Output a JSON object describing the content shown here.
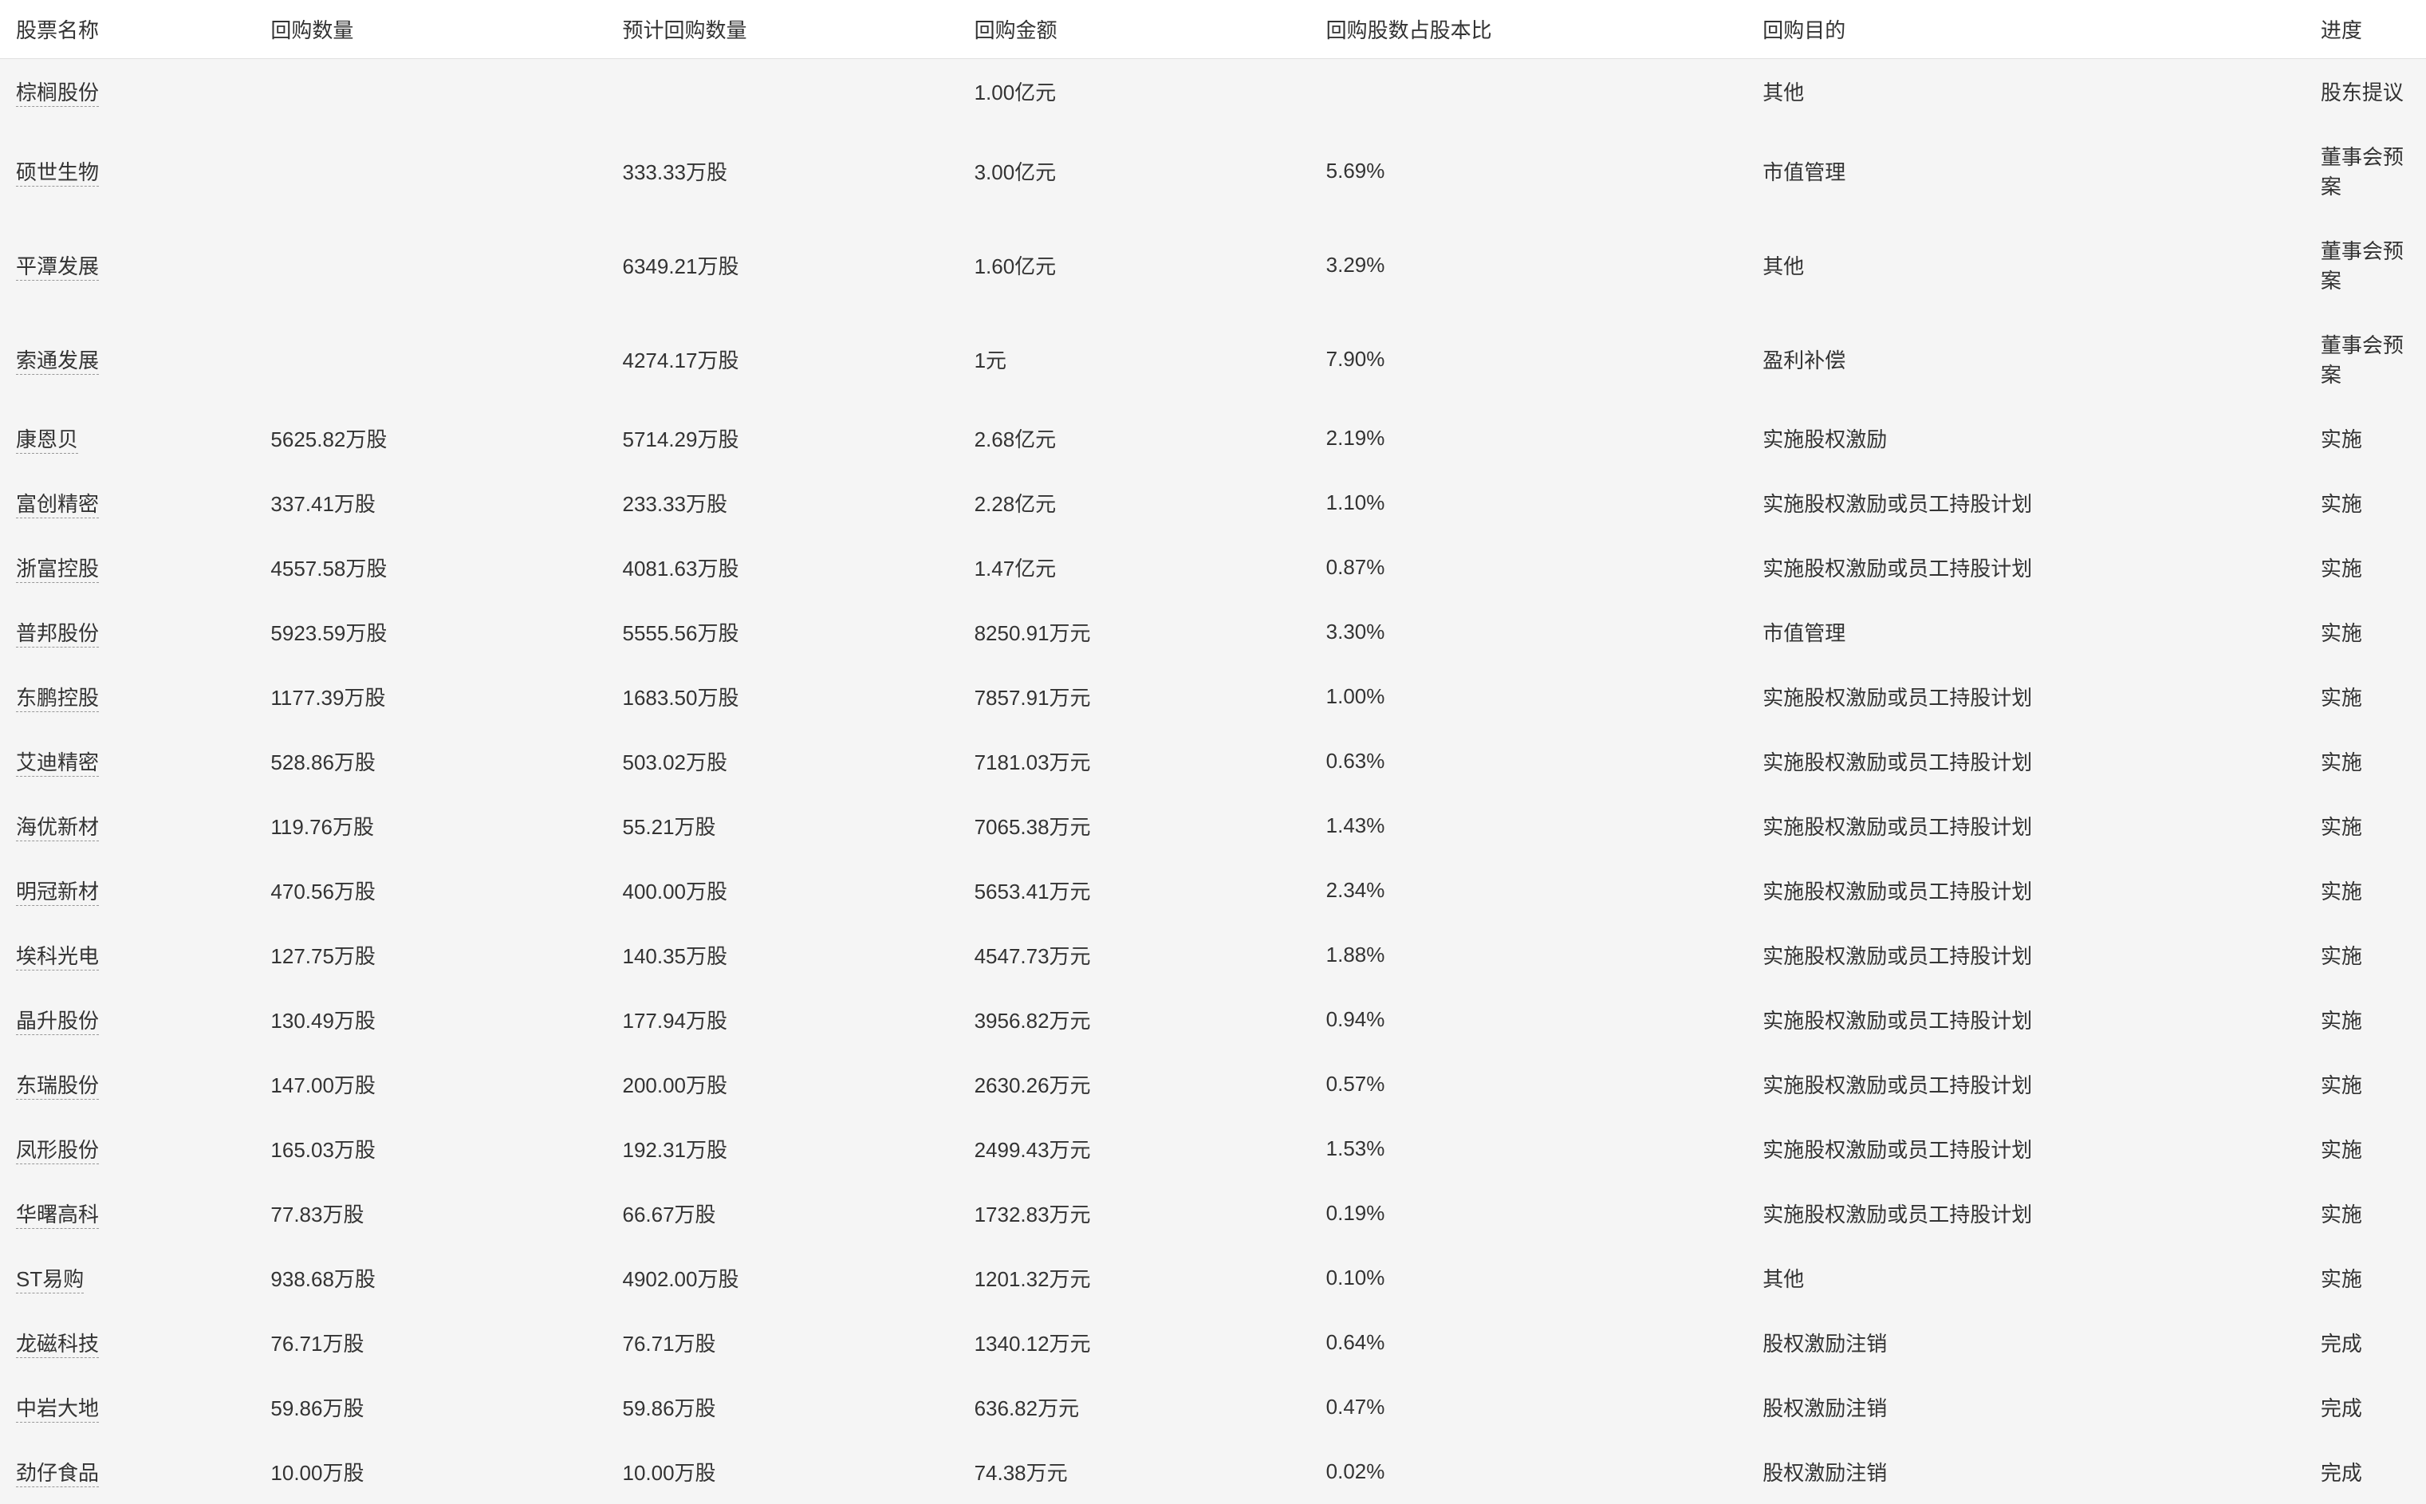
{
  "table": {
    "columns": [
      "股票名称",
      "回购数量",
      "预计回购数量",
      "回购金额",
      "回购股数占股本比",
      "回购目的",
      "进度"
    ],
    "rows": [
      {
        "name": "棕榈股份",
        "qty": "",
        "est_qty": "",
        "amount": "1.00亿元",
        "pct": "",
        "purpose": "其他",
        "progress": "股东提议"
      },
      {
        "name": "硕世生物",
        "qty": "",
        "est_qty": "333.33万股",
        "amount": "3.00亿元",
        "pct": "5.69%",
        "purpose": "市值管理",
        "progress": "董事会预案"
      },
      {
        "name": "平潭发展",
        "qty": "",
        "est_qty": "6349.21万股",
        "amount": "1.60亿元",
        "pct": "3.29%",
        "purpose": "其他",
        "progress": "董事会预案"
      },
      {
        "name": "索通发展",
        "qty": "",
        "est_qty": "4274.17万股",
        "amount": "1元",
        "pct": "7.90%",
        "purpose": "盈利补偿",
        "progress": "董事会预案"
      },
      {
        "name": "康恩贝",
        "qty": "5625.82万股",
        "est_qty": "5714.29万股",
        "amount": "2.68亿元",
        "pct": "2.19%",
        "purpose": "实施股权激励",
        "progress": "实施"
      },
      {
        "name": "富创精密",
        "qty": "337.41万股",
        "est_qty": "233.33万股",
        "amount": "2.28亿元",
        "pct": "1.10%",
        "purpose": "实施股权激励或员工持股计划",
        "progress": "实施"
      },
      {
        "name": "浙富控股",
        "qty": "4557.58万股",
        "est_qty": "4081.63万股",
        "amount": "1.47亿元",
        "pct": "0.87%",
        "purpose": "实施股权激励或员工持股计划",
        "progress": "实施"
      },
      {
        "name": "普邦股份",
        "qty": "5923.59万股",
        "est_qty": "5555.56万股",
        "amount": "8250.91万元",
        "pct": "3.30%",
        "purpose": "市值管理",
        "progress": "实施"
      },
      {
        "name": "东鹏控股",
        "qty": "1177.39万股",
        "est_qty": "1683.50万股",
        "amount": "7857.91万元",
        "pct": "1.00%",
        "purpose": "实施股权激励或员工持股计划",
        "progress": "实施"
      },
      {
        "name": "艾迪精密",
        "qty": "528.86万股",
        "est_qty": "503.02万股",
        "amount": "7181.03万元",
        "pct": "0.63%",
        "purpose": "实施股权激励或员工持股计划",
        "progress": "实施"
      },
      {
        "name": "海优新材",
        "qty": "119.76万股",
        "est_qty": "55.21万股",
        "amount": "7065.38万元",
        "pct": "1.43%",
        "purpose": "实施股权激励或员工持股计划",
        "progress": "实施"
      },
      {
        "name": "明冠新材",
        "qty": "470.56万股",
        "est_qty": "400.00万股",
        "amount": "5653.41万元",
        "pct": "2.34%",
        "purpose": "实施股权激励或员工持股计划",
        "progress": "实施"
      },
      {
        "name": "埃科光电",
        "qty": "127.75万股",
        "est_qty": "140.35万股",
        "amount": "4547.73万元",
        "pct": "1.88%",
        "purpose": "实施股权激励或员工持股计划",
        "progress": "实施"
      },
      {
        "name": "晶升股份",
        "qty": "130.49万股",
        "est_qty": "177.94万股",
        "amount": "3956.82万元",
        "pct": "0.94%",
        "purpose": "实施股权激励或员工持股计划",
        "progress": "实施"
      },
      {
        "name": "东瑞股份",
        "qty": "147.00万股",
        "est_qty": "200.00万股",
        "amount": "2630.26万元",
        "pct": "0.57%",
        "purpose": "实施股权激励或员工持股计划",
        "progress": "实施"
      },
      {
        "name": "凤形股份",
        "qty": "165.03万股",
        "est_qty": "192.31万股",
        "amount": "2499.43万元",
        "pct": "1.53%",
        "purpose": "实施股权激励或员工持股计划",
        "progress": "实施"
      },
      {
        "name": "华曙高科",
        "qty": "77.83万股",
        "est_qty": "66.67万股",
        "amount": "1732.83万元",
        "pct": "0.19%",
        "purpose": "实施股权激励或员工持股计划",
        "progress": "实施"
      },
      {
        "name": "ST易购",
        "qty": "938.68万股",
        "est_qty": "4902.00万股",
        "amount": "1201.32万元",
        "pct": "0.10%",
        "purpose": "其他",
        "progress": "实施"
      },
      {
        "name": "龙磁科技",
        "qty": "76.71万股",
        "est_qty": "76.71万股",
        "amount": "1340.12万元",
        "pct": "0.64%",
        "purpose": "股权激励注销",
        "progress": "完成"
      },
      {
        "name": "中岩大地",
        "qty": "59.86万股",
        "est_qty": "59.86万股",
        "amount": "636.82万元",
        "pct": "0.47%",
        "purpose": "股权激励注销",
        "progress": "完成"
      },
      {
        "name": "劲仔食品",
        "qty": "10.00万股",
        "est_qty": "10.00万股",
        "amount": "74.38万元",
        "pct": "0.02%",
        "purpose": "股权激励注销",
        "progress": "完成"
      }
    ]
  }
}
